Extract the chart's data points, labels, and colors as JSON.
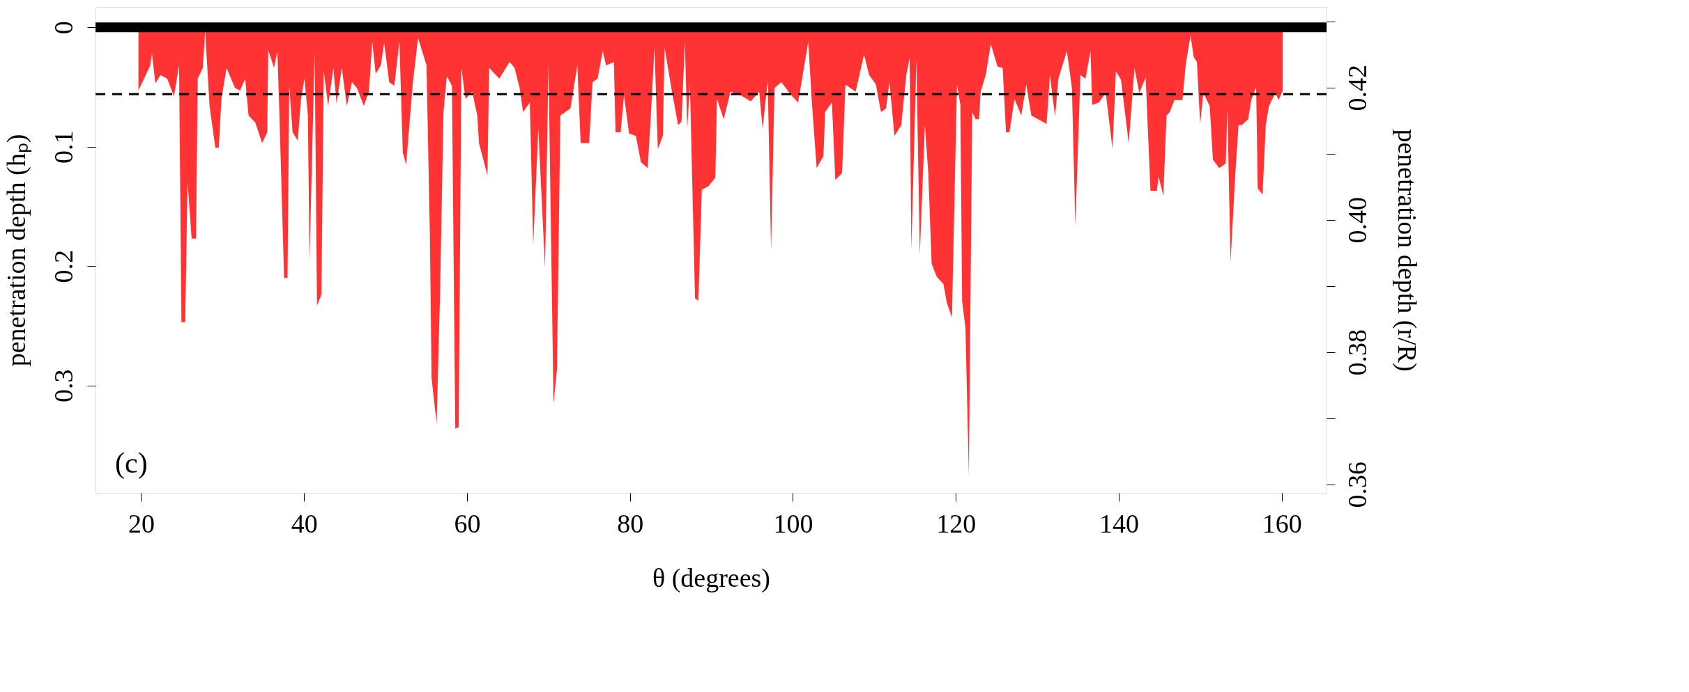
{
  "chart_data": {
    "type": "area",
    "xlabel": "θ (degrees)",
    "ylabel": "penetration depth (hₚ)",
    "y2label": "penetration depth (r/R)",
    "annotations": [
      "(c)"
    ],
    "xlim": [
      14.4,
      165.5
    ],
    "xticks": [
      20,
      40,
      60,
      80,
      100,
      120,
      140,
      160
    ],
    "ylim": [
      0.39,
      -0.017
    ],
    "yticks": [
      0,
      0.1,
      0.2,
      0.3
    ],
    "y2lim": [
      0.3587,
      0.4322
    ],
    "y2ticks": [
      {
        "value": 0.36,
        "label": "0.36"
      },
      {
        "value": 0.37,
        "label": null
      },
      {
        "value": 0.38,
        "label": "0.38"
      },
      {
        "value": 0.39,
        "label": null
      },
      {
        "value": 0.4,
        "label": "0.40"
      },
      {
        "value": 0.41,
        "label": null
      },
      {
        "value": 0.42,
        "label": "0.42"
      },
      {
        "value": 0.43,
        "label": null
      }
    ],
    "ref_lines": [
      {
        "axis": "y",
        "value": 0,
        "color": "#000000",
        "line_style": "solid"
      },
      {
        "axis": "y",
        "value": 0.056,
        "color": "#000000",
        "line_style": "dashed"
      }
    ],
    "grid": false,
    "series": [
      {
        "color": "#ff3333",
        "x": [
          19.67,
          21.12,
          21.33,
          21.75,
          22.37,
          23.2,
          24.03,
          24.66,
          24.95,
          25.41,
          25.7,
          26.2,
          26.74,
          26.95,
          27.57,
          27.86,
          28.4,
          29.11,
          29.53,
          29.86,
          30.49,
          31.52,
          32.15,
          32.77,
          33.19,
          34.02,
          34.85,
          35.48,
          35.6,
          36.31,
          36.72,
          36.93,
          37.55,
          37.97,
          38.18,
          38.59,
          39.22,
          39.63,
          40.05,
          40.47,
          40.67,
          41.3,
          41.59,
          42.13,
          42.42,
          42.96,
          43.59,
          44.0,
          44.63,
          45.25,
          45.88,
          46.5,
          47.33,
          47.96,
          48.37,
          48.79,
          49.42,
          49.83,
          50.45,
          51.08,
          51.7,
          52.12,
          52.53,
          52.95,
          53.36,
          53.99,
          55.03,
          55.44,
          55.65,
          56.27,
          56.69,
          57.11,
          57.52,
          58.15,
          58.56,
          58.98,
          59.31,
          59.81,
          60.64,
          61.26,
          61.47,
          62.51,
          62.72,
          63.97,
          65.22,
          65.84,
          66.46,
          66.88,
          67.71,
          68.13,
          68.75,
          69.58,
          70.0,
          70.62,
          71.04,
          71.46,
          72.7,
          73.54,
          73.95,
          74.99,
          75.41,
          76.03,
          76.66,
          77.07,
          78.03,
          78.23,
          78.86,
          79.27,
          79.89,
          80.72,
          81.35,
          82.18,
          82.59,
          83.01,
          83.42,
          84.04,
          84.25,
          85.08,
          85.91,
          86.33,
          86.74,
          87.03,
          87.36,
          87.99,
          88.4,
          88.82,
          89.65,
          90.48,
          90.68,
          91.51,
          92.34,
          93.59,
          94.83,
          95.87,
          96.28,
          96.91,
          97.32,
          97.74,
          98.57,
          99.81,
          100.64,
          101.89,
          102.3,
          102.92,
          103.75,
          103.96,
          104.79,
          105.21,
          106.04,
          106.45,
          107.7,
          108.73,
          109.36,
          110.19,
          110.81,
          111.43,
          111.85,
          112.47,
          113.3,
          113.92,
          114.33,
          114.54,
          115.16,
          115.58,
          116.2,
          116.62,
          117.03,
          117.65,
          118.48,
          118.9,
          119.52,
          120.14,
          120.56,
          120.77,
          121.18,
          121.6,
          122.01,
          122.43,
          122.84,
          123.05,
          123.67,
          124.29,
          125.12,
          125.75,
          126.16,
          126.58,
          127.2,
          128.03,
          128.65,
          129.27,
          130.1,
          131.14,
          131.55,
          132.18,
          132.59,
          133.63,
          134.25,
          134.67,
          135.29,
          135.91,
          136.53,
          136.74,
          137.57,
          138.4,
          139.23,
          139.65,
          140.27,
          141.22,
          141.93,
          142.52,
          143.3,
          143.89,
          144.68,
          144.88,
          145.47,
          145.86,
          146.25,
          146.84,
          147.82,
          148.22,
          148.81,
          149.2,
          149.59,
          149.99,
          150.38,
          151.16,
          151.56,
          152.34,
          153.13,
          153.33,
          153.72,
          154.31,
          154.7,
          155.1,
          155.88,
          156.27,
          156.86,
          157.06,
          157.65,
          158.04,
          158.44,
          159.22,
          159.62,
          160.13
        ],
        "values": [
          0.053,
          0.032,
          0.022,
          0.047,
          0.04,
          0.043,
          0.058,
          0.032,
          0.247,
          0.247,
          0.129,
          0.177,
          0.177,
          0.043,
          0.034,
          0.003,
          0.066,
          0.101,
          0.101,
          0.06,
          0.034,
          0.051,
          0.053,
          0.043,
          0.074,
          0.08,
          0.097,
          0.088,
          0.019,
          0.034,
          0.02,
          0.063,
          0.21,
          0.21,
          0.049,
          0.088,
          0.095,
          0.06,
          0.043,
          0.074,
          0.196,
          0.02,
          0.233,
          0.224,
          0.037,
          0.066,
          0.034,
          0.064,
          0.034,
          0.066,
          0.046,
          0.051,
          0.066,
          0.054,
          0.012,
          0.039,
          0.032,
          0.013,
          0.046,
          0.049,
          0.012,
          0.105,
          0.115,
          0.08,
          0.046,
          0.009,
          0.032,
          0.173,
          0.294,
          0.332,
          0.224,
          0.071,
          0.041,
          0.049,
          0.336,
          0.335,
          0.034,
          0.06,
          0.054,
          0.074,
          0.097,
          0.124,
          0.034,
          0.043,
          0.029,
          0.034,
          0.051,
          0.071,
          0.063,
          0.182,
          0.085,
          0.202,
          0.032,
          0.315,
          0.287,
          0.074,
          0.068,
          0.032,
          0.097,
          0.097,
          0.046,
          0.043,
          0.02,
          0.032,
          0.029,
          0.088,
          0.088,
          0.057,
          0.089,
          0.091,
          0.113,
          0.118,
          0.071,
          0.017,
          0.102,
          0.091,
          0.017,
          0.051,
          0.082,
          0.079,
          0.012,
          0.085,
          0.048,
          0.227,
          0.229,
          0.136,
          0.133,
          0.126,
          0.06,
          0.077,
          0.054,
          0.057,
          0.062,
          0.054,
          0.085,
          0.045,
          0.187,
          0.051,
          0.046,
          0.057,
          0.063,
          0.012,
          0.06,
          0.118,
          0.108,
          0.071,
          0.063,
          0.128,
          0.122,
          0.048,
          0.054,
          0.023,
          0.04,
          0.048,
          0.071,
          0.068,
          0.046,
          0.091,
          0.082,
          0.04,
          0.026,
          0.187,
          0.027,
          0.19,
          0.082,
          0.122,
          0.198,
          0.209,
          0.215,
          0.231,
          0.243,
          0.048,
          0.065,
          0.229,
          0.252,
          0.376,
          0.071,
          0.077,
          0.077,
          0.054,
          0.04,
          0.014,
          0.033,
          0.034,
          0.088,
          0.088,
          0.06,
          0.074,
          0.048,
          0.074,
          0.077,
          0.081,
          0.04,
          0.075,
          0.043,
          0.02,
          0.051,
          0.166,
          0.04,
          0.043,
          0.02,
          0.065,
          0.063,
          0.055,
          0.102,
          0.037,
          0.044,
          0.097,
          0.034,
          0.055,
          0.042,
          0.137,
          0.137,
          0.125,
          0.141,
          0.074,
          0.071,
          0.061,
          0.061,
          0.031,
          0.007,
          0.025,
          0.029,
          0.081,
          0.055,
          0.066,
          0.111,
          0.118,
          0.114,
          0.069,
          0.197,
          0.122,
          0.082,
          0.082,
          0.077,
          0.061,
          0.05,
          0.135,
          0.14,
          0.082,
          0.066,
          0.055,
          0.061,
          0.053
        ]
      }
    ]
  }
}
